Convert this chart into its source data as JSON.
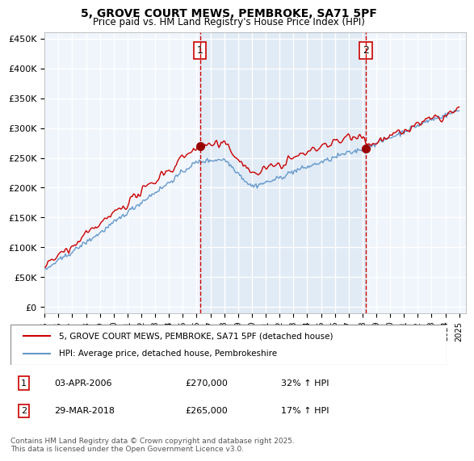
{
  "title": "5, GROVE COURT MEWS, PEMBROKE, SA71 5PF",
  "subtitle": "Price paid vs. HM Land Registry's House Price Index (HPI)",
  "legend_line1": "5, GROVE COURT MEWS, PEMBROKE, SA71 5PF (detached house)",
  "legend_line2": "HPI: Average price, detached house, Pembrokeshire",
  "annotation1_label": "1",
  "annotation1_date": "03-APR-2006",
  "annotation1_price": "£270,000",
  "annotation1_hpi": "32% ↑ HPI",
  "annotation2_label": "2",
  "annotation2_date": "29-MAR-2018",
  "annotation2_price": "£265,000",
  "annotation2_hpi": "17% ↑ HPI",
  "footer": "Contains HM Land Registry data © Crown copyright and database right 2025.\nThis data is licensed under the Open Government Licence v3.0.",
  "red_color": "#cc0000",
  "blue_color": "#6699cc",
  "bg_color": "#dce9f5",
  "plot_bg": "#f0f5fc",
  "grid_color": "#ffffff",
  "vline_color": "#cc0000",
  "marker_color": "#990000",
  "y_ticks": [
    0,
    50000,
    100000,
    150000,
    200000,
    250000,
    300000,
    350000,
    400000,
    450000
  ],
  "y_tick_labels": [
    "£0",
    "£50K",
    "£100K",
    "£150K",
    "£200K",
    "£250K",
    "£300K",
    "£350K",
    "£400K",
    "£450K"
  ],
  "x_start_year": 1995,
  "x_end_year": 2025,
  "sale1_year": 2006.25,
  "sale1_price": 270000,
  "sale2_year": 2018.24,
  "sale2_price": 265000
}
